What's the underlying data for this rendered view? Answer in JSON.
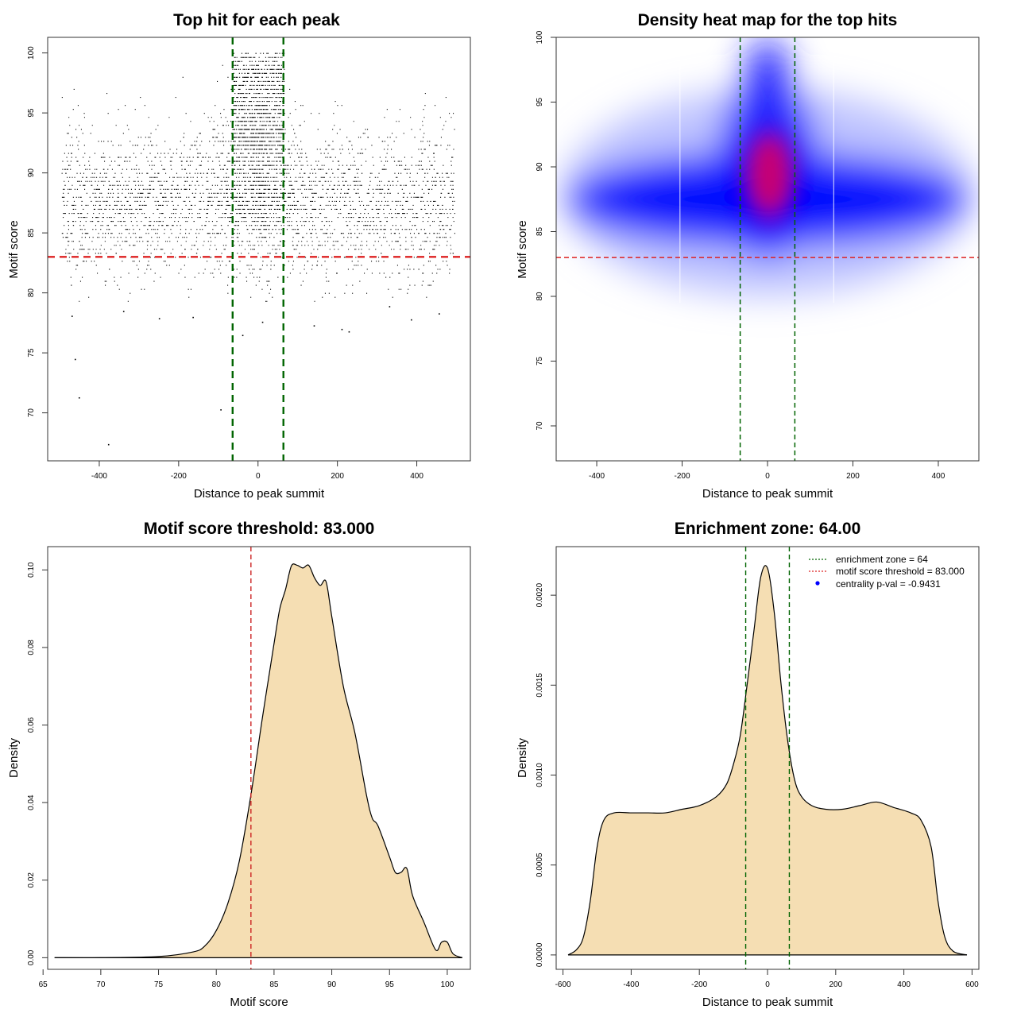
{
  "chart_data": [
    {
      "type": "scatter",
      "title": "Top hit for each peak",
      "xlabel": "Distance to peak summit",
      "ylabel": "Motif score",
      "xlim": [
        -530,
        535
      ],
      "ylim": [
        66.0,
        101.3
      ],
      "xticks": [
        -400,
        -200,
        0,
        200,
        400
      ],
      "yticks": [
        70,
        75,
        80,
        85,
        90,
        95,
        100
      ],
      "threshold": 83.0,
      "enrichment_zone": [
        -64,
        64
      ],
      "threshold_color": "#dd2222",
      "zone_color": "#006400",
      "point_color": "#000000",
      "outlier_points": [
        {
          "x": -470,
          "y": 78.1
        },
        {
          "x": -462,
          "y": 74.5
        },
        {
          "x": -452,
          "y": 71.3
        },
        {
          "x": -378,
          "y": 67.4
        },
        {
          "x": -95,
          "y": 70.3
        },
        {
          "x": -250,
          "y": 77.9
        },
        {
          "x": -340,
          "y": 78.5
        },
        {
          "x": -165,
          "y": 78.0
        },
        {
          "x": 10,
          "y": 77.6
        },
        {
          "x": 140,
          "y": 77.3
        },
        {
          "x": 210,
          "y": 77.0
        },
        {
          "x": 385,
          "y": 77.8
        },
        {
          "x": 455,
          "y": 78.3
        },
        {
          "x": 330,
          "y": 78.9
        },
        {
          "x": -40,
          "y": 76.5
        },
        {
          "x": 228,
          "y": 76.8
        }
      ]
    },
    {
      "type": "heatmap",
      "title": "Density heat map for the top hits",
      "xlabel": "Distance to peak summit",
      "ylabel": "Motif score",
      "xlim": [
        -495,
        495
      ],
      "ylim": [
        67.3,
        100.0
      ],
      "xticks": [
        -400,
        -200,
        0,
        200,
        400
      ],
      "yticks": [
        70,
        75,
        80,
        85,
        90,
        95,
        100
      ],
      "threshold": 83.0,
      "enrichment_zone": [
        -64,
        64
      ],
      "colorscale": [
        "#ffffff",
        "#0000ff",
        "#ff0000"
      ]
    },
    {
      "type": "area",
      "title": "Motif score threshold: 83.000",
      "xlabel": "Motif score",
      "ylabel": "Density",
      "xlim": [
        65.4,
        102.0
      ],
      "ylim": [
        -0.003,
        0.106
      ],
      "xticks": [
        65,
        70,
        75,
        80,
        85,
        90,
        95,
        100
      ],
      "yticks": [
        0.0,
        0.02,
        0.04,
        0.06,
        0.08,
        0.1
      ],
      "ytick_labels": [
        "0.00",
        "0.02",
        "0.04",
        "0.06",
        "0.08",
        "0.10"
      ],
      "threshold": 83.0,
      "fill_color": "#f5deb3",
      "threshold_color": "#cc2222",
      "x": [
        66,
        70,
        75,
        78,
        79,
        80,
        81,
        82,
        83,
        84,
        85,
        85.5,
        86,
        86.5,
        87,
        87.5,
        88,
        88.5,
        89,
        89.5,
        90,
        91,
        92,
        93,
        93.5,
        94,
        95,
        95.5,
        96,
        96.5,
        97,
        98,
        99,
        99.5,
        100,
        100.5,
        101.3
      ],
      "y": [
        0.0,
        0.0,
        0.0003,
        0.0015,
        0.003,
        0.007,
        0.014,
        0.025,
        0.042,
        0.062,
        0.081,
        0.09,
        0.095,
        0.101,
        0.1012,
        0.1005,
        0.1012,
        0.098,
        0.096,
        0.097,
        0.088,
        0.07,
        0.058,
        0.042,
        0.036,
        0.034,
        0.026,
        0.022,
        0.022,
        0.023,
        0.016,
        0.009,
        0.002,
        0.004,
        0.004,
        0.001,
        0.0
      ]
    },
    {
      "type": "area",
      "title": "Enrichment zone: 64.00",
      "xlabel": "Distance to peak summit",
      "ylabel": "Density",
      "xlim": [
        -620,
        620
      ],
      "ylim": [
        -8e-05,
        0.00227
      ],
      "xticks": [
        -600,
        -400,
        -200,
        0,
        200,
        400,
        600
      ],
      "yticks": [
        0.0,
        0.0005,
        0.001,
        0.0015,
        0.002
      ],
      "ytick_labels": [
        "0.0000",
        "0.0005",
        "0.0010",
        "0.0015",
        "0.0020"
      ],
      "enrichment_zone": [
        -64,
        64
      ],
      "fill_color": "#f5deb3",
      "zone_color": "#006400",
      "x": [
        -585,
        -560,
        -540,
        -520,
        -500,
        -480,
        -450,
        -400,
        -350,
        -300,
        -250,
        -200,
        -150,
        -120,
        -100,
        -80,
        -60,
        -40,
        -20,
        0,
        20,
        40,
        60,
        80,
        100,
        130,
        170,
        220,
        270,
        320,
        370,
        420,
        450,
        480,
        500,
        520,
        545,
        585
      ],
      "y": [
        0.0,
        3e-05,
        0.0001,
        0.0003,
        0.0006,
        0.00075,
        0.00079,
        0.00079,
        0.00079,
        0.00079,
        0.00081,
        0.00083,
        0.00088,
        0.00095,
        0.00106,
        0.00122,
        0.0015,
        0.0018,
        0.0021,
        0.00215,
        0.0019,
        0.0015,
        0.00118,
        0.00097,
        0.00088,
        0.00083,
        0.00081,
        0.00081,
        0.00083,
        0.00085,
        0.00082,
        0.00079,
        0.00075,
        0.0006,
        0.0003,
        0.0001,
        2e-05,
        0.0
      ],
      "legend": [
        {
          "label": "enrichment zone = 64",
          "color": "#006400",
          "style": "dotted-line"
        },
        {
          "label": "motif score threshold = 83.000",
          "color": "#dd2222",
          "style": "dotted-line"
        },
        {
          "label": "centrality p-val = -0.9431",
          "color": "#0000ff",
          "style": "point"
        }
      ],
      "legend_position": "top-right"
    }
  ]
}
